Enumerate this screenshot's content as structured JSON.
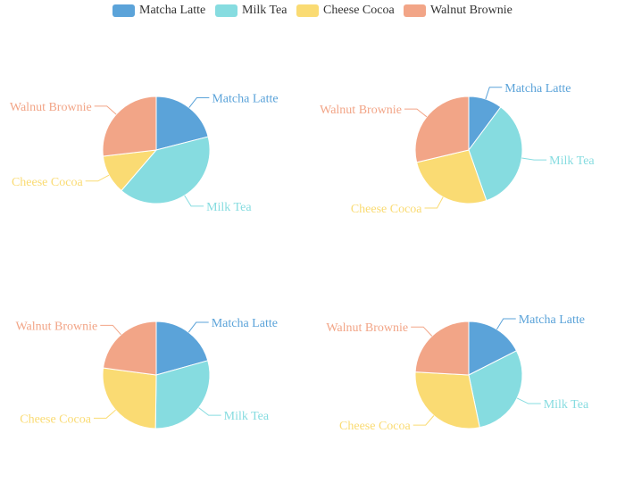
{
  "colors": [
    "#5ba3d9",
    "#86dce0",
    "#fadb73",
    "#f2a587"
  ],
  "legend": {
    "items": [
      "Matcha Latte",
      "Milk Tea",
      "Cheese Cocoa",
      "Walnut Brownie"
    ]
  },
  "chart_data": [
    {
      "type": "pie",
      "categories": [
        "Matcha Latte",
        "Milk Tea",
        "Cheese Cocoa",
        "Walnut Brownie"
      ],
      "values": [
        43.3,
        83.1,
        24.4,
        55.4
      ]
    },
    {
      "type": "pie",
      "categories": [
        "Matcha Latte",
        "Milk Tea",
        "Cheese Cocoa",
        "Walnut Brownie"
      ],
      "values": [
        12.8,
        43.3,
        33.5,
        36.1
      ]
    },
    {
      "type": "pie",
      "categories": [
        "Matcha Latte",
        "Milk Tea",
        "Cheese Cocoa",
        "Walnut Brownie"
      ],
      "values": [
        22.2,
        31.8,
        28.9,
        24.6
      ]
    },
    {
      "type": "pie",
      "categories": [
        "Matcha Latte",
        "Milk Tea",
        "Cheese Cocoa",
        "Walnut Brownie"
      ],
      "values": [
        20.0,
        33.3,
        33.3,
        27.5
      ]
    }
  ]
}
